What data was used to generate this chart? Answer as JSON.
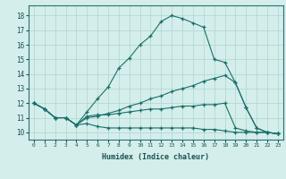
{
  "xlabel": "Humidex (Indice chaleur)",
  "xlim": [
    -0.5,
    23.5
  ],
  "ylim": [
    9.5,
    18.7
  ],
  "xticks": [
    0,
    1,
    2,
    3,
    4,
    5,
    6,
    7,
    8,
    9,
    10,
    11,
    12,
    13,
    14,
    15,
    16,
    17,
    18,
    19,
    20,
    21,
    22,
    23
  ],
  "yticks": [
    10,
    11,
    12,
    13,
    14,
    15,
    16,
    17,
    18
  ],
  "bg_color": "#d4eeec",
  "grid_color": "#b0d4d0",
  "line_color": "#1a7068",
  "line1_x": [
    0,
    1,
    2,
    3,
    4,
    5,
    6,
    7,
    8,
    9,
    10,
    11,
    12,
    13,
    14,
    15,
    16,
    17,
    18,
    19,
    20,
    21,
    22,
    23
  ],
  "line1_y": [
    12.0,
    11.6,
    11.0,
    11.0,
    10.5,
    11.4,
    12.3,
    13.1,
    14.4,
    15.1,
    16.0,
    16.6,
    17.6,
    18.0,
    17.8,
    17.5,
    17.2,
    15.0,
    14.8,
    13.4,
    11.7,
    10.3,
    10.0,
    9.9
  ],
  "line2_x": [
    0,
    1,
    2,
    3,
    4,
    5,
    6,
    7,
    8,
    9,
    10,
    11,
    12,
    13,
    14,
    15,
    16,
    17,
    18,
    19,
    20,
    21,
    22,
    23
  ],
  "line2_y": [
    12.0,
    11.6,
    11.0,
    11.0,
    10.5,
    11.0,
    11.1,
    11.3,
    11.5,
    11.8,
    12.0,
    12.3,
    12.5,
    12.8,
    13.0,
    13.2,
    13.5,
    13.7,
    13.9,
    13.4,
    11.7,
    10.3,
    10.0,
    9.9
  ],
  "line3_x": [
    0,
    1,
    2,
    3,
    4,
    5,
    6,
    7,
    8,
    9,
    10,
    11,
    12,
    13,
    14,
    15,
    16,
    17,
    18,
    19,
    20,
    21,
    22,
    23
  ],
  "line3_y": [
    12.0,
    11.6,
    11.0,
    11.0,
    10.5,
    11.1,
    11.2,
    11.2,
    11.3,
    11.4,
    11.5,
    11.6,
    11.6,
    11.7,
    11.8,
    11.8,
    11.9,
    11.9,
    12.0,
    10.3,
    10.1,
    10.0,
    10.0,
    9.9
  ],
  "line4_x": [
    0,
    1,
    2,
    3,
    4,
    5,
    6,
    7,
    8,
    9,
    10,
    11,
    12,
    13,
    14,
    15,
    16,
    17,
    18,
    19,
    20,
    21,
    22,
    23
  ],
  "line4_y": [
    12.0,
    11.6,
    11.0,
    11.0,
    10.5,
    10.6,
    10.4,
    10.3,
    10.3,
    10.3,
    10.3,
    10.3,
    10.3,
    10.3,
    10.3,
    10.3,
    10.2,
    10.2,
    10.1,
    10.0,
    10.0,
    10.0,
    10.0,
    9.9
  ]
}
